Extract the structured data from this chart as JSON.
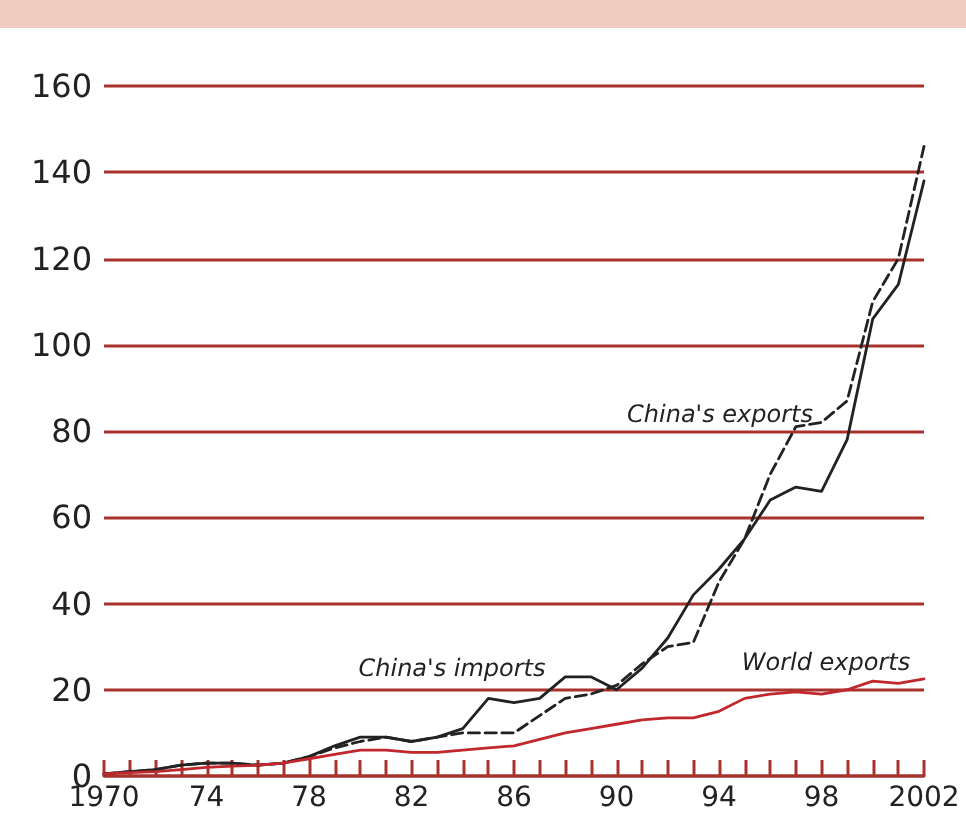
{
  "chart_data": {
    "type": "line",
    "x": [
      1970,
      1971,
      1972,
      1973,
      1974,
      1975,
      1976,
      1977,
      1978,
      1979,
      1980,
      1981,
      1982,
      1983,
      1984,
      1985,
      1986,
      1987,
      1988,
      1989,
      1990,
      1991,
      1992,
      1993,
      1994,
      1995,
      1996,
      1997,
      1998,
      1999,
      2000,
      2001,
      2002
    ],
    "series": [
      {
        "color": "#222222",
        "line_style": "solid",
        "values": [
          0.5,
          1,
          1.5,
          2.5,
          3,
          3,
          2.5,
          3,
          4.5,
          7,
          9,
          9,
          8,
          9,
          11,
          18,
          17,
          18,
          23,
          23,
          20,
          25,
          32,
          42,
          48,
          55,
          64,
          67,
          66,
          78,
          106,
          114,
          138
        ]
      },
      {
        "color": "#222222",
        "line_style": "dashed",
        "values": [
          0.5,
          1,
          1.5,
          2.5,
          3,
          3,
          2.5,
          3,
          4.5,
          6.5,
          8,
          9,
          8,
          9,
          10,
          10,
          10,
          14,
          18,
          19,
          21,
          26,
          30,
          31,
          45,
          55,
          70,
          81,
          82,
          87,
          110,
          120,
          146
        ]
      },
      {
        "color": "#c0282d",
        "line_style": "solid",
        "values": [
          0.5,
          0.8,
          1,
          1.5,
          2,
          2.3,
          2.5,
          3,
          4,
          5,
          6,
          6,
          5.5,
          5.5,
          6,
          6.5,
          7,
          8.5,
          10,
          11,
          12,
          13,
          13.5,
          13.5,
          15,
          18,
          19,
          19.5,
          19,
          20,
          22,
          21.5,
          22.5
        ]
      }
    ],
    "annotations": [
      "China's exports",
      "China's imports",
      "World exports"
    ],
    "xlim": [
      1970,
      2002
    ],
    "xticks": [
      1970,
      {
        "value": 1971,
        "label": null
      },
      {
        "value": 1972,
        "label": null
      },
      {
        "value": 1973,
        "label": null
      },
      {
        "value": 1974,
        "label": "74"
      },
      {
        "value": 1975,
        "label": null
      },
      {
        "value": 1976,
        "label": null
      },
      {
        "value": 1977,
        "label": null
      },
      {
        "value": 1978,
        "label": "78"
      },
      {
        "value": 1979,
        "label": null
      },
      {
        "value": 1980,
        "label": null
      },
      {
        "value": 1981,
        "label": null
      },
      {
        "value": 1982,
        "label": "82"
      },
      {
        "value": 1983,
        "label": null
      },
      {
        "value": 1984,
        "label": null
      },
      {
        "value": 1985,
        "label": null
      },
      {
        "value": 1986,
        "label": "86"
      },
      {
        "value": 1987,
        "label": null
      },
      {
        "value": 1988,
        "label": null
      },
      {
        "value": 1989,
        "label": null
      },
      {
        "value": 1990,
        "label": "90"
      },
      {
        "value": 1991,
        "label": null
      },
      {
        "value": 1992,
        "label": null
      },
      {
        "value": 1993,
        "label": null
      },
      {
        "value": 1994,
        "label": "94"
      },
      {
        "value": 1995,
        "label": null
      },
      {
        "value": 1996,
        "label": null
      },
      {
        "value": 1997,
        "label": null
      },
      {
        "value": 1998,
        "label": "98"
      },
      {
        "value": 1999,
        "label": null
      },
      {
        "value": 2000,
        "label": null
      },
      {
        "value": 2001,
        "label": null
      },
      2002
    ],
    "ylim": [
      0,
      160
    ],
    "yticks": [
      0,
      20,
      40,
      60,
      80,
      100,
      120,
      140,
      160
    ],
    "grid": "y",
    "marker": "none"
  }
}
